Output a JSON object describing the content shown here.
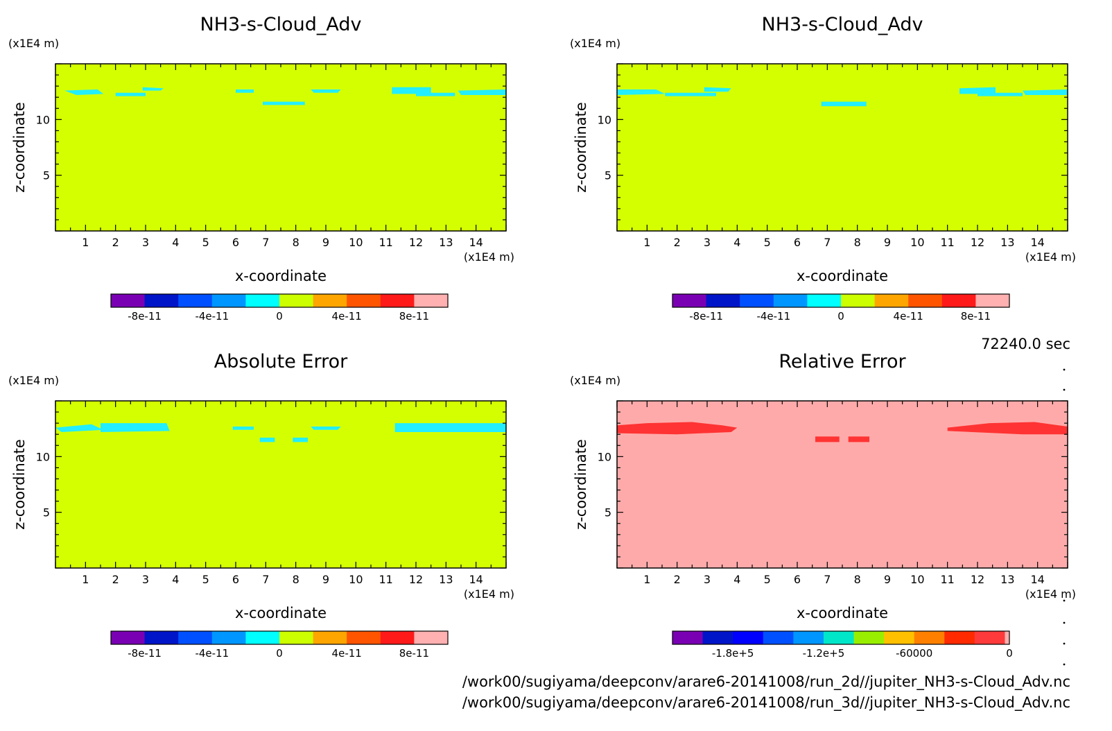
{
  "chart_data": [
    {
      "type": "heatmap",
      "title": "NH3-s-Cloud_Adv",
      "xlabel": "x-coordinate",
      "ylabel": "z-coordinate",
      "x_unit": "(x1E4 m)",
      "y_unit": "(x1E4 m)",
      "xlim": [
        0,
        15
      ],
      "ylim": [
        0,
        15
      ],
      "x_ticks": [
        1,
        2,
        3,
        4,
        5,
        6,
        7,
        8,
        9,
        10,
        11,
        12,
        13,
        14
      ],
      "y_ticks": [
        5,
        10
      ],
      "background_color": "#d4ff00",
      "patches": [
        {
          "color": "#22eeff",
          "points": [
            [
              0.3,
              12.6
            ],
            [
              1.4,
              12.7
            ],
            [
              1.6,
              12.3
            ],
            [
              0.7,
              12.2
            ]
          ]
        },
        {
          "color": "#22eeff",
          "points": [
            [
              2.0,
              12.4
            ],
            [
              3.0,
              12.4
            ],
            [
              3.0,
              12.1
            ],
            [
              2.0,
              12.1
            ]
          ]
        },
        {
          "color": "#22eeff",
          "points": [
            [
              2.9,
              12.9
            ],
            [
              3.6,
              12.8
            ],
            [
              3.5,
              12.6
            ],
            [
              2.9,
              12.6
            ]
          ]
        },
        {
          "color": "#22eeff",
          "points": [
            [
              6.0,
              12.7
            ],
            [
              6.6,
              12.7
            ],
            [
              6.6,
              12.4
            ],
            [
              6.0,
              12.4
            ]
          ]
        },
        {
          "color": "#22eeff",
          "points": [
            [
              6.9,
              11.6
            ],
            [
              8.3,
              11.6
            ],
            [
              8.3,
              11.3
            ],
            [
              6.9,
              11.3
            ]
          ]
        },
        {
          "color": "#22eeff",
          "points": [
            [
              8.5,
              12.7
            ],
            [
              9.5,
              12.7
            ],
            [
              9.4,
              12.4
            ],
            [
              8.6,
              12.4
            ]
          ]
        },
        {
          "color": "#22eeff",
          "points": [
            [
              11.2,
              12.9
            ],
            [
              12.5,
              12.9
            ],
            [
              12.5,
              12.3
            ],
            [
              11.2,
              12.3
            ]
          ]
        },
        {
          "color": "#22eeff",
          "points": [
            [
              12.0,
              12.4
            ],
            [
              13.3,
              12.4
            ],
            [
              13.3,
              12.1
            ],
            [
              12.0,
              12.1
            ]
          ]
        },
        {
          "color": "#22eeff",
          "points": [
            [
              13.4,
              12.6
            ],
            [
              15.0,
              12.7
            ],
            [
              15.0,
              12.2
            ],
            [
              13.5,
              12.2
            ]
          ]
        }
      ],
      "colorbar": {
        "colors": [
          "#7a00b4",
          "#0014c8",
          "#0050ff",
          "#0096ff",
          "#00ffff",
          "#ccff00",
          "#ffa500",
          "#ff5500",
          "#ff1a1a",
          "#ffb0b0"
        ],
        "tick_labels": [
          "-8e-11",
          "-4e-11",
          "0",
          "4e-11",
          "8e-11"
        ],
        "tick_at_boundary": [
          1,
          3,
          5,
          7,
          9
        ]
      }
    },
    {
      "type": "heatmap",
      "title": "NH3-s-Cloud_Adv",
      "xlabel": "x-coordinate",
      "ylabel": "z-coordinate",
      "x_unit": "(x1E4 m)",
      "y_unit": "(x1E4 m)",
      "xlim": [
        0,
        15
      ],
      "ylim": [
        0,
        15
      ],
      "x_ticks": [
        1,
        2,
        3,
        4,
        5,
        6,
        7,
        8,
        9,
        10,
        11,
        12,
        13,
        14
      ],
      "y_ticks": [
        5,
        10
      ],
      "background_color": "#d4ff00",
      "patches": [
        {
          "color": "#22eeff",
          "points": [
            [
              0.0,
              12.7
            ],
            [
              1.3,
              12.7
            ],
            [
              1.6,
              12.3
            ],
            [
              0.0,
              12.2
            ]
          ]
        },
        {
          "color": "#22eeff",
          "points": [
            [
              1.6,
              12.4
            ],
            [
              3.3,
              12.4
            ],
            [
              3.3,
              12.1
            ],
            [
              1.6,
              12.1
            ]
          ]
        },
        {
          "color": "#22eeff",
          "points": [
            [
              2.9,
              12.9
            ],
            [
              3.8,
              12.8
            ],
            [
              3.7,
              12.5
            ],
            [
              2.9,
              12.5
            ]
          ]
        },
        {
          "color": "#22eeff",
          "points": [
            [
              6.8,
              11.6
            ],
            [
              8.3,
              11.6
            ],
            [
              8.3,
              11.2
            ],
            [
              6.8,
              11.2
            ]
          ]
        },
        {
          "color": "#22eeff",
          "points": [
            [
              11.4,
              12.8
            ],
            [
              12.6,
              12.9
            ],
            [
              12.6,
              12.3
            ],
            [
              11.4,
              12.3
            ]
          ]
        },
        {
          "color": "#22eeff",
          "points": [
            [
              12.0,
              12.4
            ],
            [
              13.5,
              12.4
            ],
            [
              13.5,
              12.1
            ],
            [
              12.0,
              12.1
            ]
          ]
        },
        {
          "color": "#22eeff",
          "points": [
            [
              13.5,
              12.6
            ],
            [
              15.0,
              12.7
            ],
            [
              15.0,
              12.2
            ],
            [
              13.6,
              12.2
            ]
          ]
        }
      ],
      "colorbar": {
        "colors": [
          "#7a00b4",
          "#0014c8",
          "#0050ff",
          "#0096ff",
          "#00ffff",
          "#ccff00",
          "#ffa500",
          "#ff5500",
          "#ff1a1a",
          "#ffb0b0"
        ],
        "tick_labels": [
          "-8e-11",
          "-4e-11",
          "0",
          "4e-11",
          "8e-11"
        ],
        "tick_at_boundary": [
          1,
          3,
          5,
          7,
          9
        ]
      }
    },
    {
      "type": "heatmap",
      "title": "Absolute Error",
      "xlabel": "x-coordinate",
      "ylabel": "z-coordinate",
      "x_unit": "(x1E4 m)",
      "y_unit": "(x1E4 m)",
      "xlim": [
        0,
        15
      ],
      "ylim": [
        0,
        15
      ],
      "x_ticks": [
        1,
        2,
        3,
        4,
        5,
        6,
        7,
        8,
        9,
        10,
        11,
        12,
        13,
        14
      ],
      "y_ticks": [
        5,
        10
      ],
      "background_color": "#d4ff00",
      "patches": [
        {
          "color": "#22eeff",
          "points": [
            [
              0.0,
              12.6
            ],
            [
              1.2,
              12.9
            ],
            [
              1.6,
              12.4
            ],
            [
              0.2,
              12.2
            ]
          ]
        },
        {
          "color": "#22eeff",
          "points": [
            [
              1.5,
              13.0
            ],
            [
              3.7,
              13.0
            ],
            [
              3.8,
              12.3
            ],
            [
              1.5,
              12.2
            ]
          ]
        },
        {
          "color": "#22eeff",
          "points": [
            [
              5.9,
              12.7
            ],
            [
              6.6,
              12.7
            ],
            [
              6.6,
              12.4
            ],
            [
              5.9,
              12.4
            ]
          ]
        },
        {
          "color": "#22eeff",
          "points": [
            [
              6.8,
              11.7
            ],
            [
              7.3,
              11.7
            ],
            [
              7.3,
              11.3
            ],
            [
              6.8,
              11.3
            ]
          ]
        },
        {
          "color": "#22eeff",
          "points": [
            [
              7.9,
              11.7
            ],
            [
              8.4,
              11.7
            ],
            [
              8.4,
              11.3
            ],
            [
              7.9,
              11.3
            ]
          ]
        },
        {
          "color": "#22eeff",
          "points": [
            [
              8.5,
              12.7
            ],
            [
              9.5,
              12.7
            ],
            [
              9.4,
              12.4
            ],
            [
              8.6,
              12.4
            ]
          ]
        },
        {
          "color": "#22eeff",
          "points": [
            [
              11.3,
              13.0
            ],
            [
              15.0,
              13.0
            ],
            [
              15.0,
              12.2
            ],
            [
              11.3,
              12.2
            ]
          ]
        }
      ],
      "colorbar": {
        "colors": [
          "#7a00b4",
          "#0014c8",
          "#0050ff",
          "#0096ff",
          "#00ffff",
          "#ccff00",
          "#ffa500",
          "#ff5500",
          "#ff1a1a",
          "#ffb0b0"
        ],
        "tick_labels": [
          "-8e-11",
          "-4e-11",
          "0",
          "4e-11",
          "8e-11"
        ],
        "tick_at_boundary": [
          1,
          3,
          5,
          7,
          9
        ]
      }
    },
    {
      "type": "heatmap",
      "title": "Relative Error",
      "xlabel": "x-coordinate",
      "ylabel": "z-coordinate",
      "x_unit": "(x1E4 m)",
      "y_unit": "(x1E4 m)",
      "xlim": [
        0,
        15
      ],
      "ylim": [
        0,
        15
      ],
      "x_ticks": [
        1,
        2,
        3,
        4,
        5,
        6,
        7,
        8,
        9,
        10,
        11,
        12,
        13,
        14
      ],
      "y_ticks": [
        5,
        10
      ],
      "background_color": "#ffaaaa",
      "patches": [
        {
          "color": "#ff3333",
          "points": [
            [
              0.0,
              12.8
            ],
            [
              1.0,
              13.0
            ],
            [
              2.5,
              13.1
            ],
            [
              3.5,
              12.8
            ],
            [
              4.0,
              12.6
            ],
            [
              3.8,
              12.2
            ],
            [
              2.0,
              12.0
            ],
            [
              0.0,
              12.1
            ]
          ]
        },
        {
          "color": "#ff3333",
          "points": [
            [
              6.6,
              11.8
            ],
            [
              7.4,
              11.8
            ],
            [
              7.4,
              11.3
            ],
            [
              6.6,
              11.3
            ]
          ]
        },
        {
          "color": "#ff3333",
          "points": [
            [
              7.7,
              11.8
            ],
            [
              8.4,
              11.8
            ],
            [
              8.4,
              11.3
            ],
            [
              7.7,
              11.3
            ]
          ]
        },
        {
          "color": "#ff3333",
          "points": [
            [
              11.0,
              12.6
            ],
            [
              12.4,
              13.0
            ],
            [
              13.9,
              13.1
            ],
            [
              15.0,
              12.7
            ],
            [
              15.0,
              12.0
            ],
            [
              13.5,
              12.0
            ],
            [
              11.0,
              12.3
            ]
          ]
        }
      ],
      "colorbar": {
        "colors": [
          "#7a00b4",
          "#0014c8",
          "#0000ff",
          "#0050ff",
          "#0096ff",
          "#00e6c8",
          "#99ee00",
          "#ffc000",
          "#ff8000",
          "#ff2a00",
          "#ff3a3a",
          "#ffb0b0"
        ],
        "widths": [
          1,
          1,
          1,
          1,
          1,
          1,
          1,
          1,
          1,
          1,
          1,
          0.15
        ],
        "tick_labels": [
          "-1.8e+5",
          "-1.2e+5",
          "-60000",
          "0"
        ],
        "tick_at_boundary": [
          2,
          5,
          8,
          11.15
        ]
      }
    }
  ],
  "time_label": "72240.0 sec",
  "file_paths": [
    "/work00/sugiyama/deepconv/arare6-20141008/run_2d//jupiter_NH3-s-Cloud_Adv.nc",
    "/work00/sugiyama/deepconv/arare6-20141008/run_3d//jupiter_NH3-s-Cloud_Adv.nc"
  ]
}
